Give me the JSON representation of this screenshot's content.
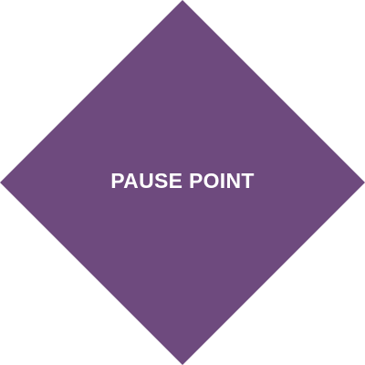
{
  "sign": {
    "label": "PAUSE POINT",
    "fill_color": "#6e4a7e",
    "text_color": "#ffffff",
    "background_color": "#ffffff"
  }
}
